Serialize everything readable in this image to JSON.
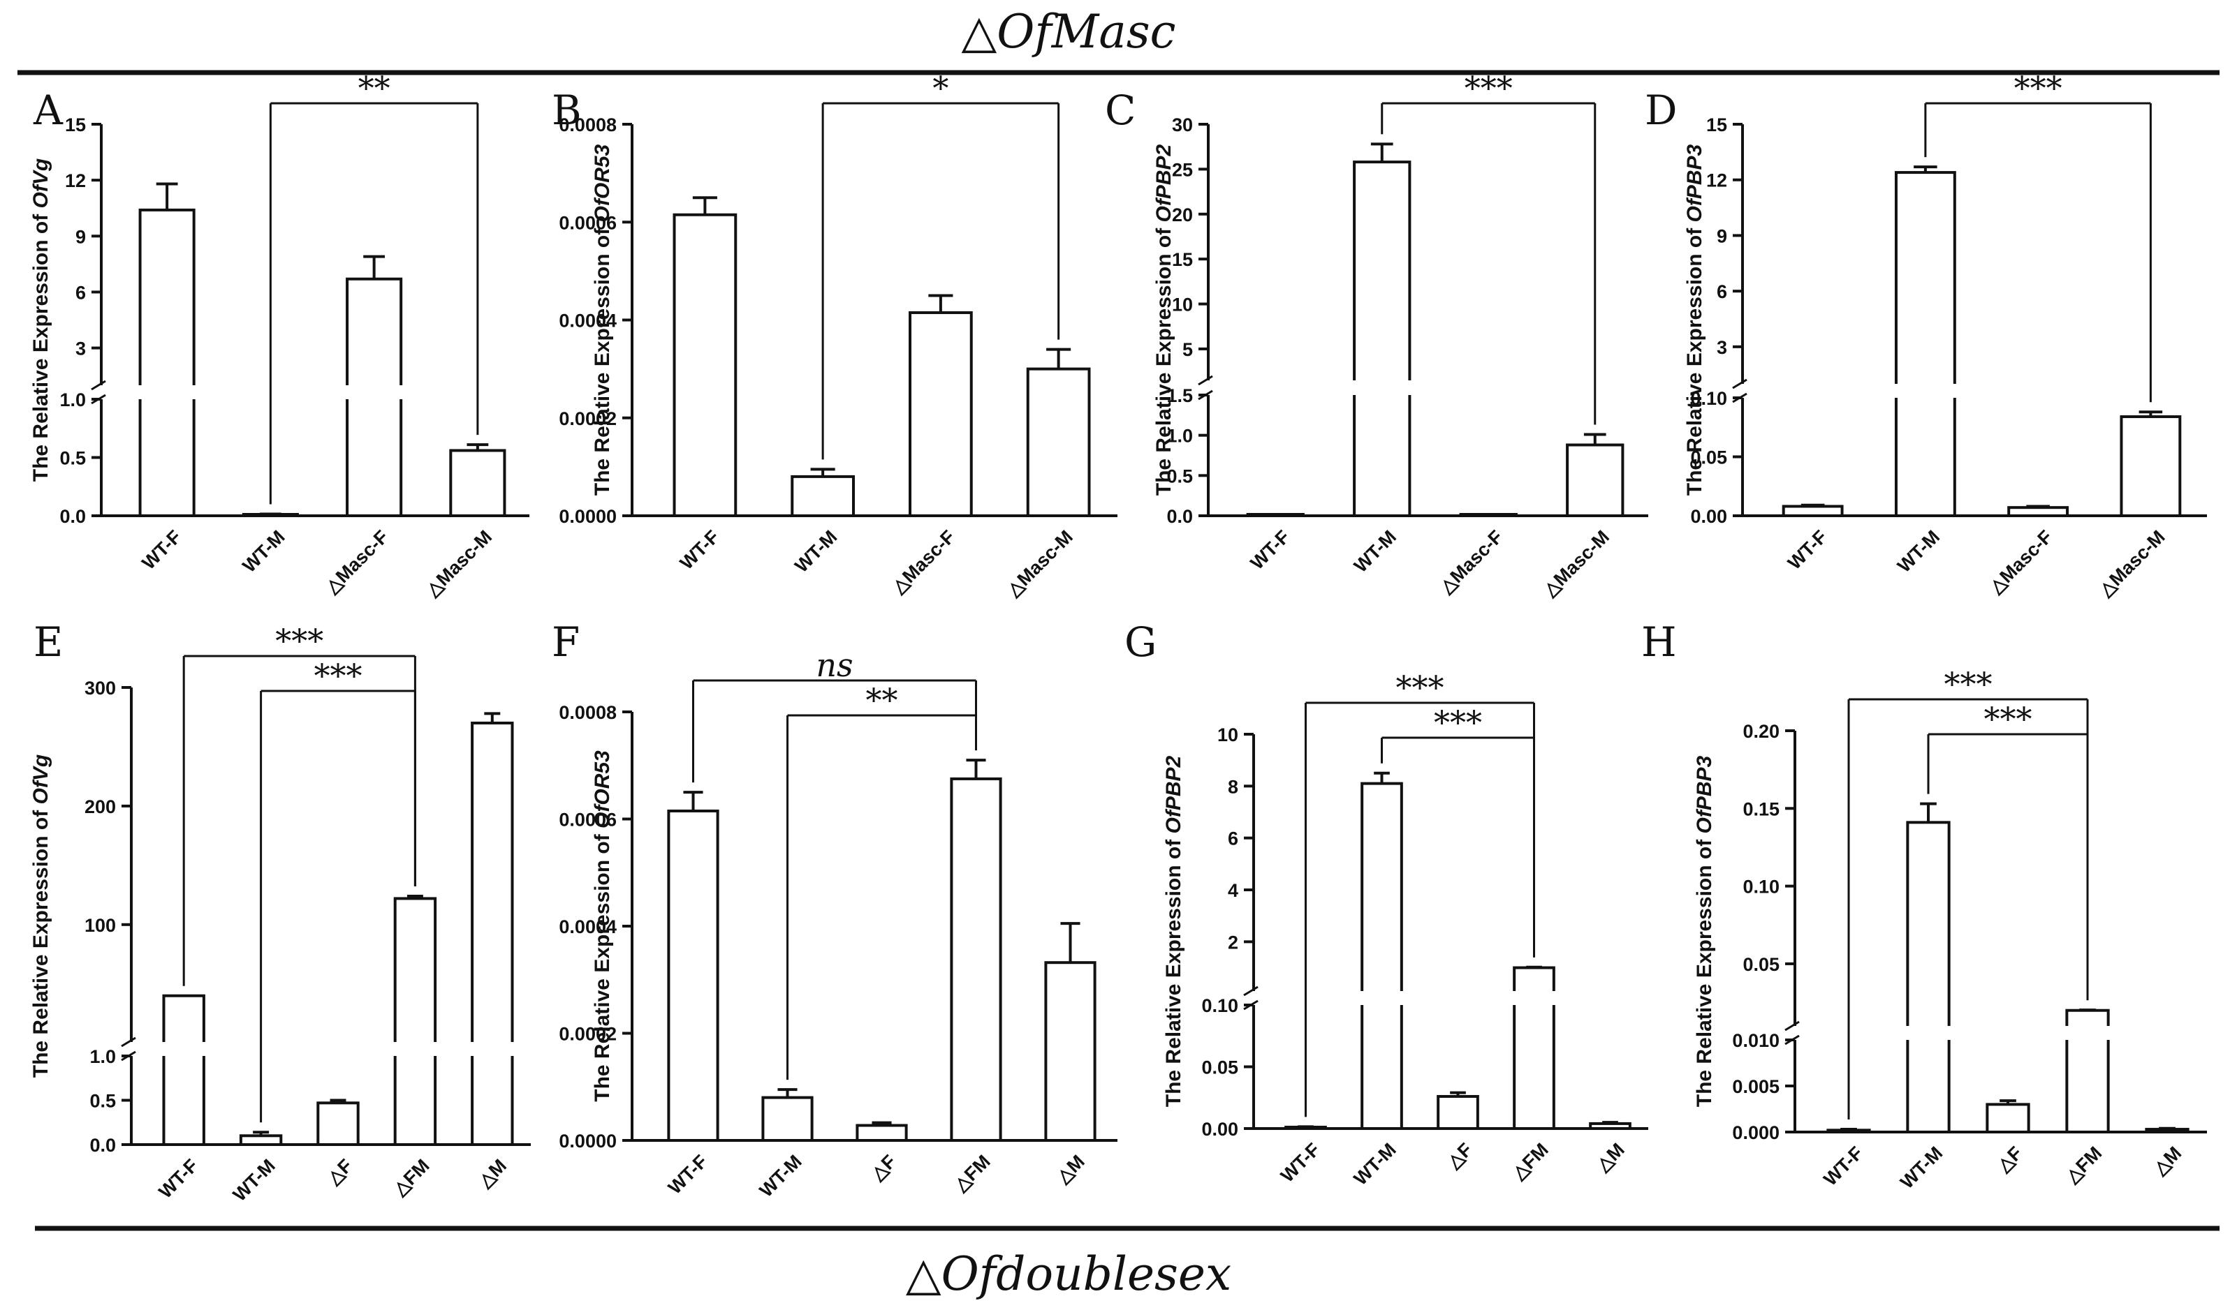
{
  "figure": {
    "top_label": "△OfMasc",
    "bottom_label": "△Ofdoublesex"
  },
  "chart_data": [
    {
      "panel": "A",
      "type": "bar",
      "ylabel_prefix": "The Relative Expression of ",
      "gene": "OfVg",
      "categories": [
        "WT-F",
        "WT-M",
        "△Masc-F",
        "△Masc-M"
      ],
      "values": [
        10.4,
        0.01,
        6.7,
        0.56
      ],
      "errors": [
        1.4,
        0.005,
        1.2,
        0.05
      ],
      "upper": {
        "range": [
          1,
          15
        ],
        "ticks": [
          "3",
          "6",
          "9",
          "12",
          "15"
        ]
      },
      "lower": {
        "range": [
          0,
          1.0
        ],
        "ticks": [
          "0.0",
          "0.5",
          "1.0"
        ]
      },
      "significance": [
        {
          "from": 1,
          "to": 3,
          "label": "**"
        }
      ]
    },
    {
      "panel": "B",
      "type": "bar",
      "ylabel_prefix": "The Relative Expression of ",
      "gene": "OfOR53",
      "categories": [
        "WT-F",
        "WT-M",
        "△Masc-F",
        "△Masc-M"
      ],
      "values": [
        0.000615,
        8e-05,
        0.000415,
        0.0003
      ],
      "errors": [
        3.5e-05,
        1.5e-05,
        3.5e-05,
        4e-05
      ],
      "ylim": [
        0,
        0.0008
      ],
      "ticks": [
        "0.0000",
        "0.0002",
        "0.0004",
        "0.0006",
        "0.0008"
      ],
      "significance": [
        {
          "from": 1,
          "to": 3,
          "label": "*"
        }
      ]
    },
    {
      "panel": "C",
      "type": "bar",
      "ylabel_prefix": "The Relative Expression of ",
      "gene": "OfPBP2",
      "categories": [
        "WT-F",
        "WT-M",
        "△Masc-F",
        "△Masc-M"
      ],
      "values": [
        0.0,
        25.8,
        0.0,
        0.88
      ],
      "errors": [
        0.0,
        2.0,
        0.0,
        0.13
      ],
      "upper": {
        "range": [
          1.5,
          30
        ],
        "ticks": [
          "5",
          "10",
          "15",
          "20",
          "25",
          "30"
        ]
      },
      "lower": {
        "range": [
          0,
          1.5
        ],
        "ticks": [
          "0.0",
          "0.5",
          "1.0",
          "1.5"
        ]
      },
      "significance": [
        {
          "from": 1,
          "to": 3,
          "label": "***"
        }
      ]
    },
    {
      "panel": "D",
      "type": "bar",
      "ylabel_prefix": "The Relative Expression of ",
      "gene": "OfPBP3",
      "categories": [
        "WT-F",
        "WT-M",
        "△Masc-F",
        "△Masc-M"
      ],
      "values": [
        0.008,
        12.4,
        0.007,
        0.084
      ],
      "errors": [
        0.001,
        0.3,
        0.001,
        0.004
      ],
      "upper": {
        "range": [
          1,
          15
        ],
        "ticks": [
          "3",
          "6",
          "9",
          "12",
          "15"
        ]
      },
      "lower": {
        "range": [
          0,
          0.1
        ],
        "ticks": [
          "0.00",
          "0.05",
          "0.10"
        ]
      },
      "significance": [
        {
          "from": 1,
          "to": 3,
          "label": "***"
        }
      ]
    },
    {
      "panel": "E",
      "type": "bar",
      "ylabel_prefix": "The Relative Expression of ",
      "gene": "OfVg",
      "categories": [
        "WT-F",
        "WT-M",
        "△F",
        "△FM",
        "△M"
      ],
      "values": [
        40,
        0.1,
        0.47,
        122,
        270
      ],
      "errors": [
        0,
        0.04,
        0.03,
        2,
        8
      ],
      "upper": {
        "range": [
          1,
          300
        ],
        "ticks": [
          "100",
          "200",
          "300"
        ]
      },
      "lower": {
        "range": [
          0,
          1.0
        ],
        "ticks": [
          "0.0",
          "0.5",
          "1.0"
        ]
      },
      "significance": [
        {
          "from": 0,
          "to": 3,
          "label": "***"
        },
        {
          "from": 1,
          "to": 3,
          "label": "***"
        }
      ]
    },
    {
      "panel": "F",
      "type": "bar",
      "ylabel_prefix": "The Relative Expression of ",
      "gene": "OfOR53",
      "categories": [
        "WT-F",
        "WT-M",
        "△F",
        "△FM",
        "△M"
      ],
      "values": [
        0.000615,
        8e-05,
        2.8e-05,
        0.000675,
        0.000332
      ],
      "errors": [
        3.5e-05,
        1.5e-05,
        5e-06,
        3.5e-05,
        7.3e-05
      ],
      "ylim": [
        0,
        0.0008
      ],
      "ticks": [
        "0.0000",
        "0.0002",
        "0.0004",
        "0.0006",
        "0.0008"
      ],
      "significance": [
        {
          "from": 0,
          "to": 3,
          "label": "ns"
        },
        {
          "from": 1,
          "to": 3,
          "label": "**"
        }
      ]
    },
    {
      "panel": "G",
      "type": "bar",
      "ylabel_prefix": "The Relative Expression of ",
      "gene": "OfPBP2",
      "categories": [
        "WT-F",
        "WT-M",
        "△F",
        "△FM",
        "△M"
      ],
      "values": [
        0.001,
        8.1,
        0.026,
        1.0,
        0.004
      ],
      "errors": [
        0.0005,
        0.4,
        0.003,
        0.02,
        0.001
      ],
      "upper": {
        "range": [
          0.1,
          10
        ],
        "ticks": [
          "2",
          "4",
          "6",
          "8",
          "10"
        ]
      },
      "lower": {
        "range": [
          0,
          0.1
        ],
        "ticks": [
          "0.00",
          "0.05",
          "0.10"
        ]
      },
      "significance": [
        {
          "from": 0,
          "to": 3,
          "label": "***"
        },
        {
          "from": 1,
          "to": 3,
          "label": "***"
        }
      ]
    },
    {
      "panel": "H",
      "type": "bar",
      "ylabel_prefix": "The Relative Expression of ",
      "gene": "OfPBP3",
      "categories": [
        "WT-F",
        "WT-M",
        "△F",
        "△FM",
        "△M"
      ],
      "values": [
        0.0002,
        0.141,
        0.003,
        0.02,
        0.0003
      ],
      "errors": [
        0.0001,
        0.012,
        0.0004,
        0.0003,
        0.0001
      ],
      "upper": {
        "range": [
          0.01,
          0.2
        ],
        "ticks": [
          "0.05",
          "0.10",
          "0.15",
          "0.20"
        ]
      },
      "lower": {
        "range": [
          0,
          0.01
        ],
        "ticks": [
          "0.000",
          "0.005",
          "0.010"
        ]
      },
      "significance": [
        {
          "from": 0,
          "to": 3,
          "label": "***"
        },
        {
          "from": 1,
          "to": 3,
          "label": "***"
        }
      ]
    }
  ]
}
